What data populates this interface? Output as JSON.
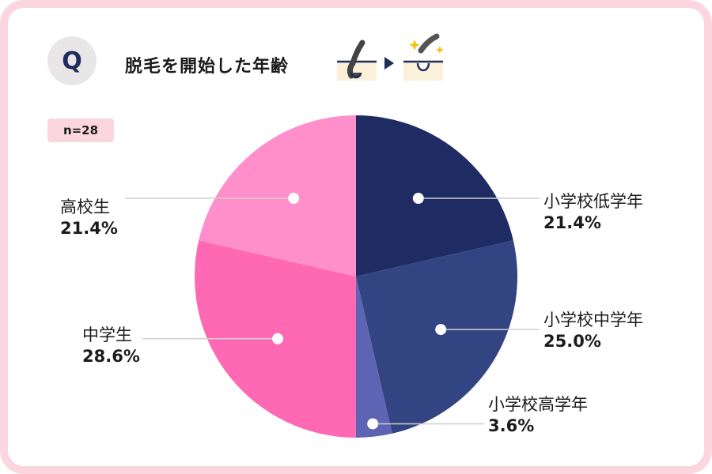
{
  "header": {
    "q_letter": "Q",
    "title": "脱毛を開始した年齢"
  },
  "sample": "n=28",
  "icons": [
    "hair-before-icon",
    "arrow-right-icon",
    "hair-removed-icon"
  ],
  "colors": {
    "frame": "#fcd6df",
    "badge_bg": "#e8e6e7",
    "q_text": "#1f2c5c",
    "leader_line": "#cfcfcf"
  },
  "chart_data": {
    "type": "pie",
    "slices": [
      {
        "label": "小学校低学年",
        "value": 21.4,
        "display": "21.4%",
        "color": "#1f2c63"
      },
      {
        "label": "小学校中学年",
        "value": 25.0,
        "display": "25.0%",
        "color": "#324582"
      },
      {
        "label": "小学校高学年",
        "value": 3.6,
        "display": "3.6%",
        "color": "#5e64b4"
      },
      {
        "label": "中学生",
        "value": 28.6,
        "display": "28.6%",
        "color": "#ff69b4"
      },
      {
        "label": "高校生",
        "value": 21.4,
        "display": "21.4%",
        "color": "#ff8fcb"
      }
    ],
    "start_angle": "12 o'clock",
    "direction": "clockwise"
  }
}
